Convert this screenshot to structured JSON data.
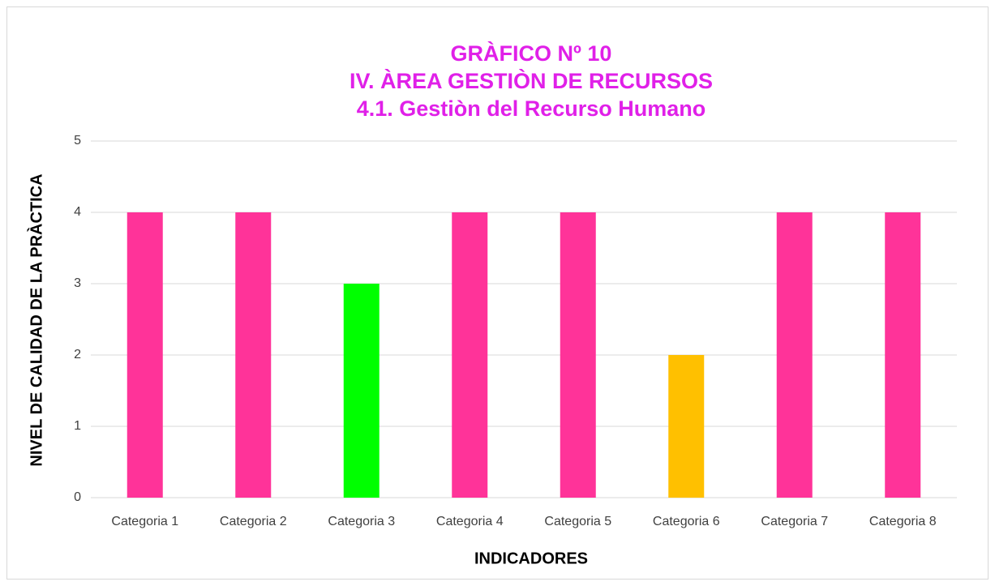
{
  "chart_data": {
    "type": "bar",
    "title": [
      "GRÀFICO Nº 10",
      "IV. ÀREA GESTIÒN DE RECURSOS",
      "4.1. Gestiòn del Recurso Humano"
    ],
    "x_label": "INDICADORES",
    "y_label": "NIVEL DE CALIDAD DE LA PRÀCTICA",
    "categories": [
      "Categoria 1",
      "Categoria 2",
      "Categoria 3",
      "Categoria 4",
      "Categoria 5",
      "Categoria 6",
      "Categoria 7",
      "Categoria 8"
    ],
    "values": [
      4,
      4,
      3,
      4,
      4,
      2,
      4,
      4
    ],
    "colors": [
      "#ff3399",
      "#ff3399",
      "#00ff00",
      "#ff3399",
      "#ff3399",
      "#ffc000",
      "#ff3399",
      "#ff3399"
    ],
    "ylim": [
      0,
      5
    ],
    "yticks": [
      0,
      1,
      2,
      3,
      4,
      5
    ],
    "grid": true
  }
}
